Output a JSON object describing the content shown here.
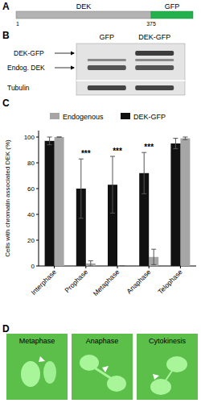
{
  "panel_labels": [
    "A",
    "B",
    "C",
    "D"
  ],
  "construct": {
    "domains": [
      "DEK",
      "GFP"
    ],
    "positions": [
      1,
      375
    ]
  },
  "blot": {
    "lanes": [
      "GFP",
      "DEK-GFP"
    ],
    "bands": [
      "DEK-GFP",
      "Endog. DEK",
      "Tubulin"
    ]
  },
  "chart_data": {
    "type": "bar",
    "ylabel": "Cells with chromatin associated DEK (%)",
    "categories": [
      "Interphase",
      "Prophase",
      "Metaphase",
      "Anaphase",
      "Telophase"
    ],
    "series": [
      {
        "name": "Endogenous",
        "color": "#a6a6a6",
        "values": [
          100,
          2,
          0,
          7,
          99
        ],
        "errors": [
          0,
          2,
          0,
          6,
          1
        ]
      },
      {
        "name": "DEK-GFP",
        "color": "#111111",
        "values": [
          97,
          60,
          63,
          72,
          95
        ],
        "errors": [
          3,
          23,
          22,
          16,
          4
        ]
      }
    ],
    "annotations": [
      null,
      "***",
      "***",
      "***",
      null
    ],
    "ylim": [
      0,
      105
    ],
    "yticks": [
      0,
      20,
      40,
      60,
      80,
      100
    ],
    "grid": false,
    "legend": "top"
  },
  "images": {
    "labels": [
      "Metaphase",
      "Anaphase",
      "Cytokinesis"
    ]
  }
}
